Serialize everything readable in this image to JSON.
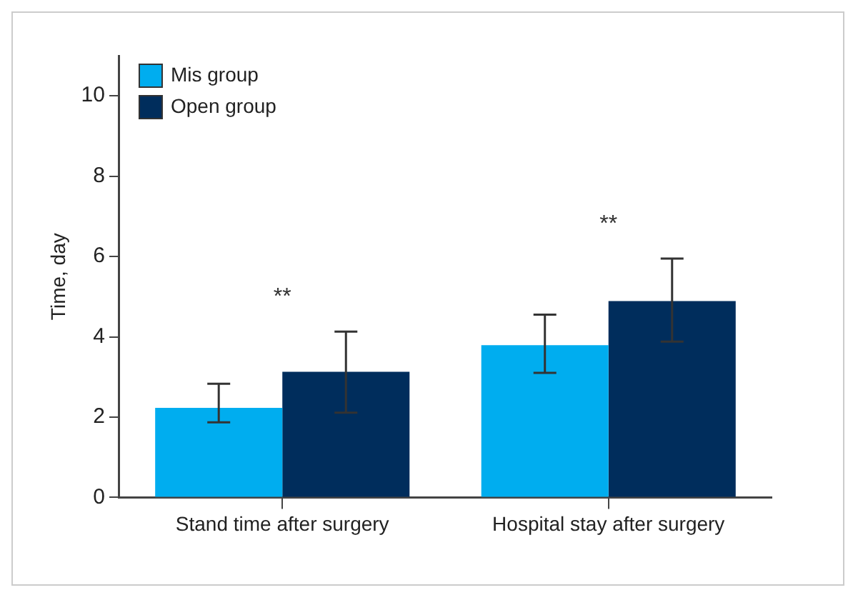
{
  "chart_data": {
    "type": "bar",
    "ylabel": "Time, day",
    "categories": [
      "Stand time after surgery",
      "Hospital stay after surgery"
    ],
    "series": [
      {
        "name": "Mis group",
        "color": "#00adef",
        "values": [
          2.23,
          3.79
        ],
        "errors": [
          [
            1.87,
            2.83
          ],
          [
            3.1,
            4.55
          ]
        ]
      },
      {
        "name": "Open group",
        "color": "#002d5c",
        "values": [
          3.13,
          4.89
        ],
        "errors": [
          [
            2.11,
            4.13
          ],
          [
            3.88,
            5.95
          ]
        ]
      }
    ],
    "ylim": [
      0,
      11
    ],
    "yticks": [
      0,
      2,
      4,
      6,
      8,
      10
    ],
    "grid": false,
    "legend": "top left",
    "annotations": [
      "**",
      "**"
    ]
  }
}
